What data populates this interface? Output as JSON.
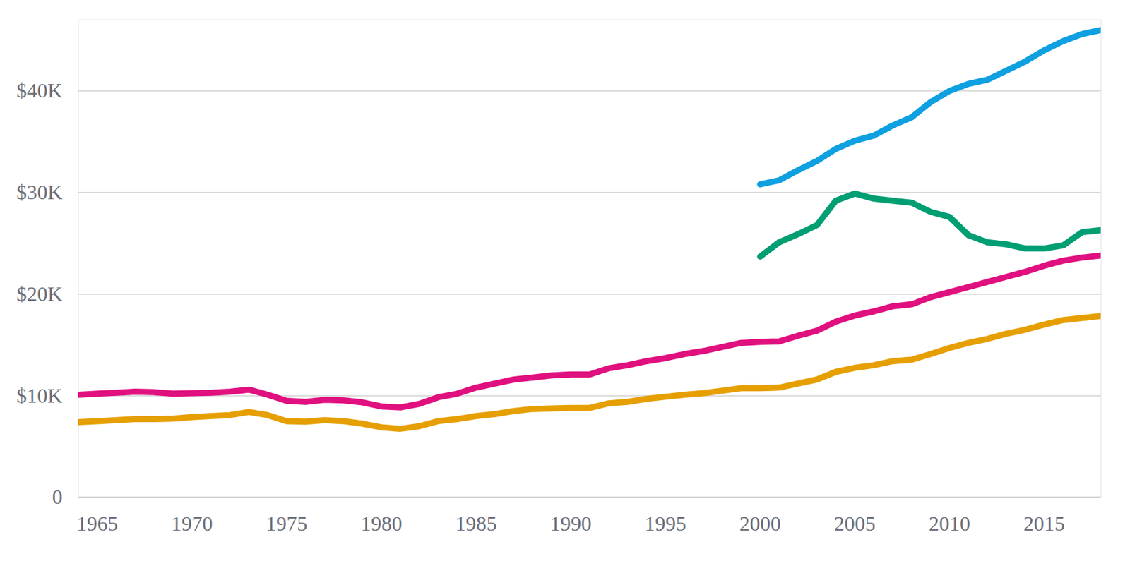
{
  "chart_data": {
    "type": "line",
    "x": [
      1964,
      1965,
      1966,
      1967,
      1968,
      1969,
      1970,
      1971,
      1972,
      1973,
      1974,
      1975,
      1976,
      1977,
      1978,
      1979,
      1980,
      1981,
      1982,
      1983,
      1984,
      1985,
      1986,
      1987,
      1988,
      1989,
      1990,
      1991,
      1992,
      1993,
      1994,
      1995,
      1996,
      1997,
      1998,
      1999,
      2000,
      2001,
      2002,
      2003,
      2004,
      2005,
      2006,
      2007,
      2008,
      2009,
      2010,
      2011,
      2012,
      2013,
      2014,
      2015,
      2016,
      2017,
      2018
    ],
    "series": [
      {
        "color": "#e0107f",
        "values": [
          10100,
          10200,
          10300,
          10400,
          10350,
          10200,
          10250,
          10300,
          10400,
          10600,
          10100,
          9500,
          9400,
          9600,
          9550,
          9350,
          8950,
          8850,
          9200,
          9850,
          10200,
          10800,
          11200,
          11600,
          11800,
          12000,
          12100,
          12100,
          12700,
          13000,
          13400,
          13700,
          14100,
          14400,
          14800,
          15200,
          15300,
          15350,
          15900,
          16400,
          17300,
          17900,
          18300,
          18800,
          19000,
          19700,
          20200,
          20700,
          21200,
          21700,
          22200,
          22800,
          23300,
          23600,
          23800
        ]
      },
      {
        "color": "#e69f00",
        "values": [
          7400,
          7500,
          7600,
          7700,
          7700,
          7750,
          7900,
          8000,
          8100,
          8400,
          8100,
          7500,
          7450,
          7600,
          7500,
          7250,
          6900,
          6750,
          7000,
          7500,
          7700,
          8000,
          8200,
          8500,
          8700,
          8750,
          8800,
          8800,
          9250,
          9400,
          9700,
          9900,
          10100,
          10250,
          10500,
          10750,
          10750,
          10800,
          11200,
          11600,
          12350,
          12750,
          13000,
          13400,
          13550,
          14100,
          14700,
          15200,
          15600,
          16100,
          16500,
          17000,
          17450,
          17650,
          17850
        ]
      },
      {
        "color": "#0ea0e0",
        "values": [
          null,
          null,
          null,
          null,
          null,
          null,
          null,
          null,
          null,
          null,
          null,
          null,
          null,
          null,
          null,
          null,
          null,
          null,
          null,
          null,
          null,
          null,
          null,
          null,
          null,
          null,
          null,
          null,
          null,
          null,
          null,
          null,
          null,
          null,
          null,
          null,
          30800,
          31200,
          32200,
          33100,
          34300,
          35100,
          35600,
          36600,
          37400,
          38900,
          40000,
          40700,
          41100,
          42000,
          42900,
          44000,
          44900,
          45600,
          46000
        ]
      },
      {
        "color": "#009e73",
        "values": [
          null,
          null,
          null,
          null,
          null,
          null,
          null,
          null,
          null,
          null,
          null,
          null,
          null,
          null,
          null,
          null,
          null,
          null,
          null,
          null,
          null,
          null,
          null,
          null,
          null,
          null,
          null,
          null,
          null,
          null,
          null,
          null,
          null,
          null,
          null,
          null,
          23700,
          25100,
          25900,
          26800,
          29200,
          29900,
          29400,
          29200,
          29000,
          28100,
          27600,
          25800,
          25100,
          24900,
          24500,
          24500,
          24800,
          26100,
          26300
        ]
      }
    ],
    "xlim": [
      1964,
      2018
    ],
    "xticks": [
      1965,
      1970,
      1975,
      1980,
      1985,
      1990,
      1995,
      2000,
      2005,
      2010,
      2015
    ],
    "ylim": [
      0,
      47000
    ],
    "yticks": [
      0,
      {
        "value": 10000,
        "label": "$10K"
      },
      {
        "value": 20000,
        "label": "$20K"
      },
      {
        "value": 30000,
        "label": "$30K"
      },
      {
        "value": 40000,
        "label": "$40K"
      }
    ],
    "grid": true
  }
}
